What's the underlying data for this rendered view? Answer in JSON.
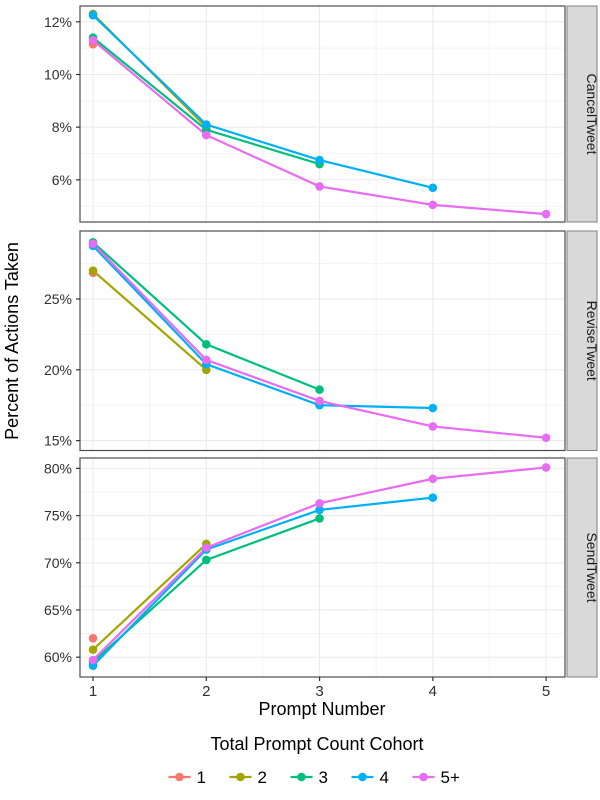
{
  "chart_data": {
    "type": "line",
    "xlabel": "Prompt Number",
    "ylabel": "Percent of Actions Taken",
    "x_ticks": [
      1,
      2,
      3,
      4,
      5
    ],
    "x_range": [
      1,
      5
    ],
    "grid": "on",
    "tick_format": "percent",
    "legend": {
      "title": "Total Prompt Count Cohort",
      "position": "bottom",
      "entries": [
        "1",
        "2",
        "3",
        "4",
        "5+"
      ]
    },
    "cohorts": [
      {
        "label": "1",
        "color": "#F8766D"
      },
      {
        "label": "2",
        "color": "#A3A500"
      },
      {
        "label": "3",
        "color": "#00BF7D"
      },
      {
        "label": "4",
        "color": "#00B0F6"
      },
      {
        "label": "5+",
        "color": "#E76BF3"
      }
    ],
    "facets": [
      {
        "label": "CancelTweet",
        "ylim": [
          4.4,
          12.6
        ],
        "yticks": [
          6,
          8,
          10,
          12
        ],
        "yminor": [
          5,
          7,
          9,
          11
        ],
        "series": [
          {
            "cohort": "1",
            "values": [
              [
                1,
                11.15
              ]
            ]
          },
          {
            "cohort": "2",
            "values": [
              [
                1,
                12.3
              ],
              [
                2,
                8.0
              ]
            ]
          },
          {
            "cohort": "3",
            "values": [
              [
                1,
                11.4
              ],
              [
                2,
                7.9
              ],
              [
                3,
                6.6
              ]
            ]
          },
          {
            "cohort": "4",
            "values": [
              [
                1,
                12.25
              ],
              [
                2,
                8.1
              ],
              [
                3,
                6.75
              ],
              [
                4,
                5.7
              ]
            ]
          },
          {
            "cohort": "5+",
            "values": [
              [
                1,
                11.3
              ],
              [
                2,
                7.7
              ],
              [
                3,
                5.75
              ],
              [
                4,
                5.05
              ],
              [
                5,
                4.7
              ]
            ]
          }
        ]
      },
      {
        "label": "ReviseTweet",
        "ylim": [
          14.3,
          29.8
        ],
        "yticks": [
          15,
          20,
          25
        ],
        "yminor": [
          17.5,
          22.5,
          27.5
        ],
        "series": [
          {
            "cohort": "1",
            "values": [
              [
                1,
                26.85
              ]
            ]
          },
          {
            "cohort": "2",
            "values": [
              [
                1,
                27.0
              ],
              [
                2,
                20.0
              ]
            ]
          },
          {
            "cohort": "3",
            "values": [
              [
                1,
                29.0
              ],
              [
                2,
                21.8
              ],
              [
                3,
                18.6
              ]
            ]
          },
          {
            "cohort": "4",
            "values": [
              [
                1,
                28.75
              ],
              [
                2,
                20.4
              ],
              [
                3,
                17.5
              ],
              [
                4,
                17.3
              ]
            ]
          },
          {
            "cohort": "5+",
            "values": [
              [
                1,
                28.9
              ],
              [
                2,
                20.7
              ],
              [
                3,
                17.8
              ],
              [
                4,
                16.0
              ],
              [
                5,
                15.2
              ]
            ]
          }
        ]
      },
      {
        "label": "SendTweet",
        "ylim": [
          57.9,
          81.1
        ],
        "yticks": [
          60,
          65,
          70,
          75,
          80
        ],
        "yminor": [
          62.5,
          67.5,
          72.5,
          77.5
        ],
        "series": [
          {
            "cohort": "1",
            "values": [
              [
                1,
                62.0
              ]
            ]
          },
          {
            "cohort": "2",
            "values": [
              [
                1,
                60.8
              ],
              [
                2,
                72.0
              ]
            ]
          },
          {
            "cohort": "3",
            "values": [
              [
                1,
                59.5
              ],
              [
                2,
                70.3
              ],
              [
                3,
                74.7
              ]
            ]
          },
          {
            "cohort": "4",
            "values": [
              [
                1,
                59.1
              ],
              [
                2,
                71.4
              ],
              [
                3,
                75.6
              ],
              [
                4,
                76.9
              ]
            ]
          },
          {
            "cohort": "5+",
            "values": [
              [
                1,
                59.7
              ],
              [
                2,
                71.6
              ],
              [
                3,
                76.3
              ],
              [
                4,
                78.9
              ],
              [
                5,
                80.1
              ]
            ]
          }
        ]
      }
    ],
    "style_colors": {
      "strip_fill": "#D9D9D9",
      "strip_border": "#808080",
      "panel_border": "#4D4D4D",
      "grid_major": "#EBEBEB",
      "grid_minor": "#F3F3F3"
    }
  }
}
